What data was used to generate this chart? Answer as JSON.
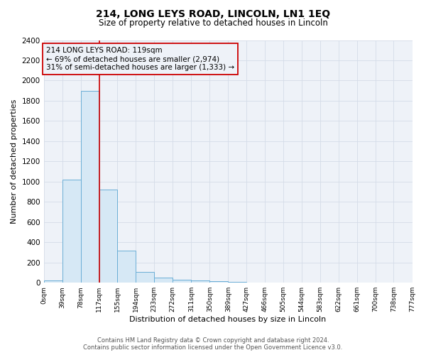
{
  "title": "214, LONG LEYS ROAD, LINCOLN, LN1 1EQ",
  "subtitle": "Size of property relative to detached houses in Lincoln",
  "xlabel": "Distribution of detached houses by size in Lincoln",
  "ylabel": "Number of detached properties",
  "bin_edges": [
    0,
    39,
    78,
    117,
    155,
    194,
    233,
    272,
    311,
    350,
    389,
    427,
    466,
    505,
    544,
    583,
    622,
    661,
    700,
    738,
    777
  ],
  "bin_counts": [
    20,
    1020,
    1900,
    920,
    320,
    110,
    50,
    30,
    20,
    15,
    10,
    0,
    0,
    0,
    0,
    0,
    0,
    0,
    0,
    0
  ],
  "tick_labels": [
    "0sqm",
    "39sqm",
    "78sqm",
    "117sqm",
    "155sqm",
    "194sqm",
    "233sqm",
    "272sqm",
    "311sqm",
    "350sqm",
    "389sqm",
    "427sqm",
    "466sqm",
    "505sqm",
    "544sqm",
    "583sqm",
    "622sqm",
    "661sqm",
    "700sqm",
    "738sqm",
    "777sqm"
  ],
  "property_line_x": 117,
  "ylim": [
    0,
    2400
  ],
  "yticks": [
    0,
    200,
    400,
    600,
    800,
    1000,
    1200,
    1400,
    1600,
    1800,
    2000,
    2200,
    2400
  ],
  "bar_facecolor": "#d6e8f5",
  "bar_edgecolor": "#6aaed6",
  "vline_color": "#cc0000",
  "grid_color": "#d4dce8",
  "annotation_line1": "214 LONG LEYS ROAD: 119sqm",
  "annotation_line2": "← 69% of detached houses are smaller (2,974)",
  "annotation_line3": "31% of semi-detached houses are larger (1,333) →",
  "annotation_box_edgecolor": "#cc0000",
  "footer_line1": "Contains HM Land Registry data © Crown copyright and database right 2024.",
  "footer_line2": "Contains public sector information licensed under the Open Government Licence v3.0.",
  "background_color": "#ffffff",
  "plot_bg_color": "#eef2f8"
}
